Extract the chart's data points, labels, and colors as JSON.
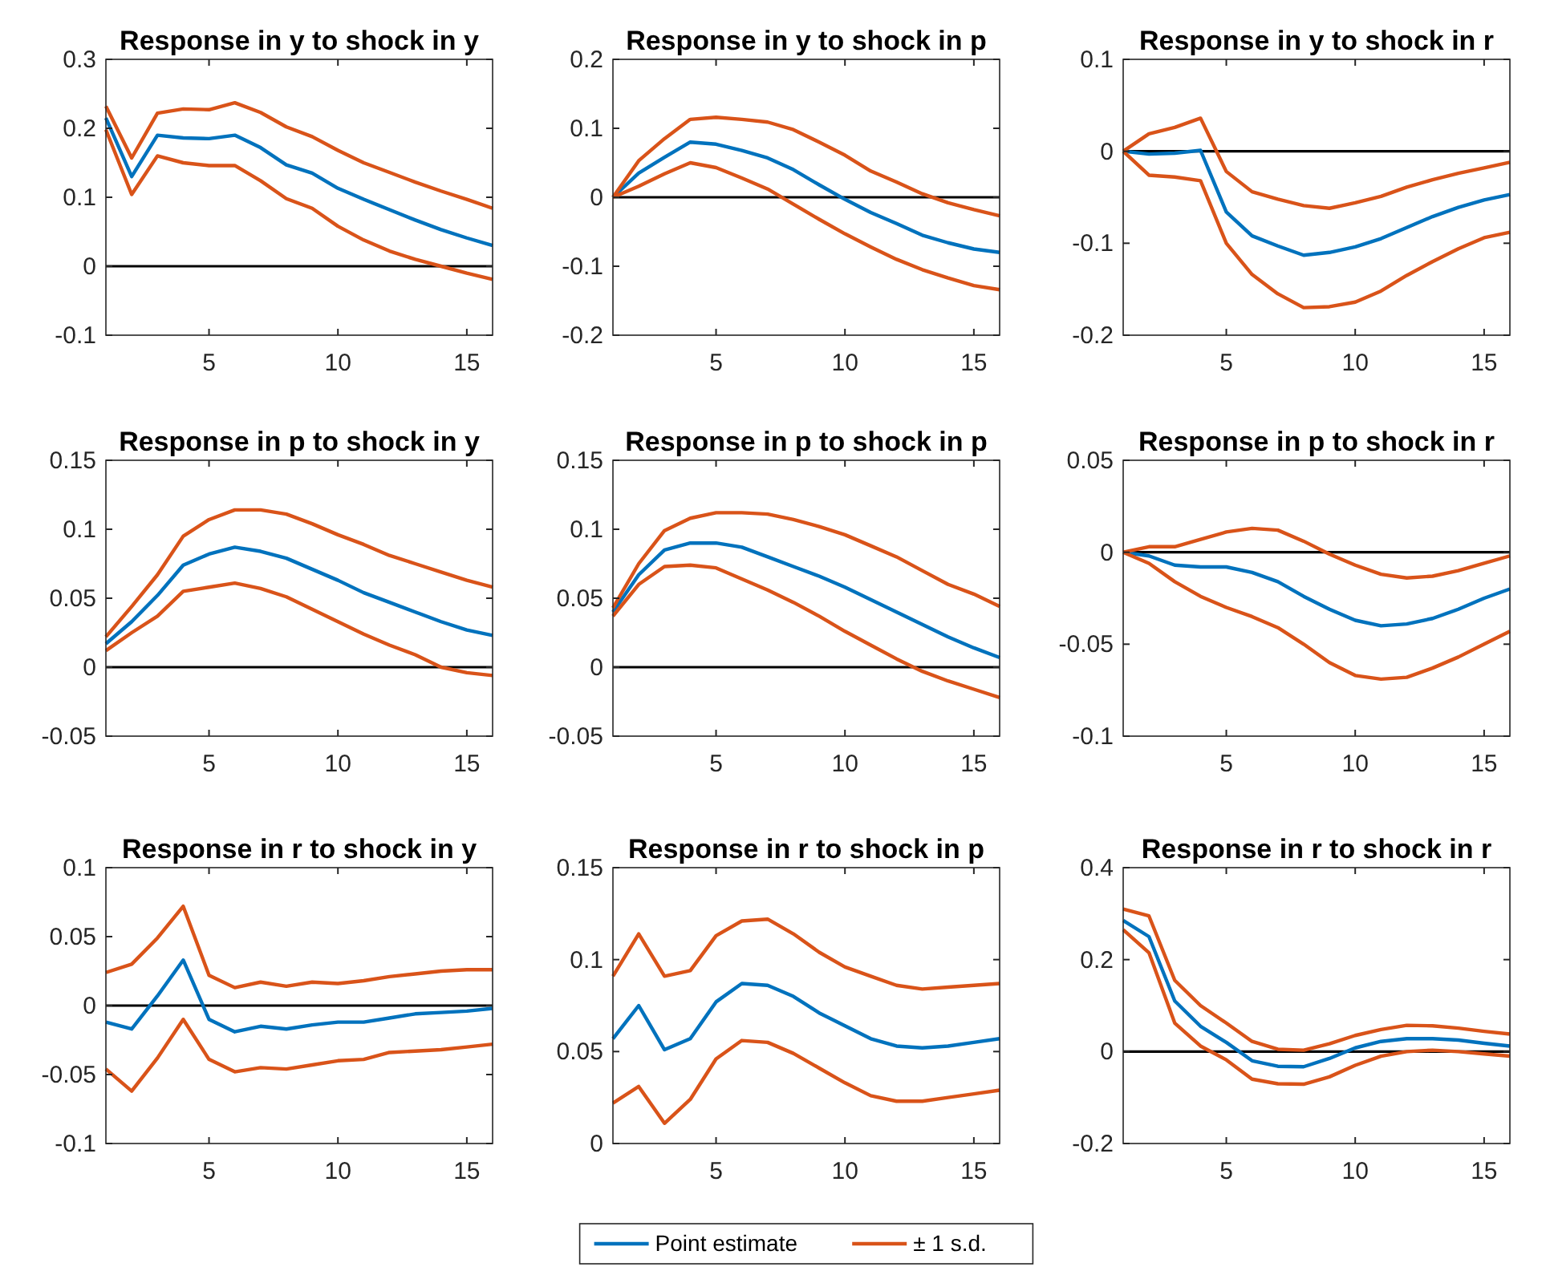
{
  "chart_data": [
    {
      "type": "line",
      "title": "Response in y to shock in y",
      "x": [
        1,
        2,
        3,
        4,
        5,
        6,
        7,
        8,
        9,
        10,
        11,
        12,
        13,
        14,
        15,
        16
      ],
      "xlim": [
        1,
        16
      ],
      "xticks": [
        5,
        10,
        15
      ],
      "ylim": [
        -0.1,
        0.3
      ],
      "yticks": [
        -0.1,
        0,
        0.1,
        0.2,
        0.3
      ],
      "ref_lines": [
        {
          "axis": "y",
          "value": 0,
          "color": "#000000"
        }
      ],
      "series": [
        {
          "color": "#0072bd",
          "values": [
            0.215,
            0.13,
            0.19,
            0.186,
            0.185,
            0.19,
            0.172,
            0.147,
            0.135,
            0.113,
            0.097,
            0.082,
            0.067,
            0.053,
            0.041,
            0.03
          ]
        },
        {
          "color": "#d95319",
          "values": [
            0.232,
            0.157,
            0.222,
            0.228,
            0.227,
            0.237,
            0.223,
            0.202,
            0.188,
            0.168,
            0.15,
            0.136,
            0.122,
            0.109,
            0.097,
            0.084
          ]
        },
        {
          "color": "#d95319",
          "values": [
            0.198,
            0.104,
            0.16,
            0.15,
            0.146,
            0.146,
            0.124,
            0.098,
            0.084,
            0.058,
            0.038,
            0.022,
            0.01,
            0.0,
            -0.01,
            -0.019
          ]
        }
      ]
    },
    {
      "type": "line",
      "title": "Response in y to shock in p",
      "x": [
        1,
        2,
        3,
        4,
        5,
        6,
        7,
        8,
        9,
        10,
        11,
        12,
        13,
        14,
        15,
        16
      ],
      "xlim": [
        1,
        16
      ],
      "xticks": [
        5,
        10,
        15
      ],
      "ylim": [
        -0.2,
        0.2
      ],
      "yticks": [
        -0.2,
        -0.1,
        0,
        0.1,
        0.2
      ],
      "ref_lines": [
        {
          "axis": "y",
          "value": 0,
          "color": "#000000"
        }
      ],
      "series": [
        {
          "color": "#0072bd",
          "values": [
            0,
            0.035,
            0.058,
            0.08,
            0.077,
            0.068,
            0.057,
            0.04,
            0.018,
            -0.003,
            -0.022,
            -0.038,
            -0.055,
            -0.066,
            -0.075,
            -0.08
          ]
        },
        {
          "color": "#d95319",
          "values": [
            0,
            0.053,
            0.085,
            0.113,
            0.116,
            0.113,
            0.109,
            0.098,
            0.08,
            0.061,
            0.038,
            0.022,
            0.005,
            -0.008,
            -0.018,
            -0.027
          ]
        },
        {
          "color": "#d95319",
          "values": [
            0,
            0.016,
            0.034,
            0.05,
            0.043,
            0.028,
            0.012,
            -0.01,
            -0.032,
            -0.053,
            -0.072,
            -0.09,
            -0.105,
            -0.117,
            -0.128,
            -0.134
          ]
        }
      ]
    },
    {
      "type": "line",
      "title": "Response in y to shock in r",
      "x": [
        1,
        2,
        3,
        4,
        5,
        6,
        7,
        8,
        9,
        10,
        11,
        12,
        13,
        14,
        15,
        16
      ],
      "xlim": [
        1,
        16
      ],
      "xticks": [
        5,
        10,
        15
      ],
      "ylim": [
        -0.2,
        0.1
      ],
      "yticks": [
        -0.2,
        -0.1,
        0,
        0.1
      ],
      "ref_lines": [
        {
          "axis": "y",
          "value": 0,
          "color": "#000000"
        }
      ],
      "series": [
        {
          "color": "#0072bd",
          "values": [
            0,
            -0.003,
            -0.002,
            0.001,
            -0.066,
            -0.092,
            -0.103,
            -0.113,
            -0.11,
            -0.104,
            -0.095,
            -0.083,
            -0.071,
            -0.061,
            -0.053,
            -0.047
          ]
        },
        {
          "color": "#d95319",
          "values": [
            0,
            0.019,
            0.026,
            0.036,
            -0.022,
            -0.044,
            -0.052,
            -0.059,
            -0.062,
            -0.056,
            -0.049,
            -0.039,
            -0.031,
            -0.024,
            -0.018,
            -0.012
          ]
        },
        {
          "color": "#d95319",
          "values": [
            0,
            -0.026,
            -0.028,
            -0.032,
            -0.1,
            -0.134,
            -0.155,
            -0.17,
            -0.169,
            -0.164,
            -0.152,
            -0.135,
            -0.12,
            -0.106,
            -0.094,
            -0.088
          ]
        }
      ]
    },
    {
      "type": "line",
      "title": "Response in p to shock in y",
      "x": [
        1,
        2,
        3,
        4,
        5,
        6,
        7,
        8,
        9,
        10,
        11,
        12,
        13,
        14,
        15,
        16
      ],
      "xlim": [
        1,
        16
      ],
      "xticks": [
        5,
        10,
        15
      ],
      "ylim": [
        -0.05,
        0.15
      ],
      "yticks": [
        -0.05,
        0,
        0.05,
        0.1,
        0.15
      ],
      "ref_lines": [
        {
          "axis": "y",
          "value": 0,
          "color": "#000000"
        }
      ],
      "series": [
        {
          "color": "#0072bd",
          "values": [
            0.017,
            0.033,
            0.052,
            0.074,
            0.082,
            0.087,
            0.084,
            0.079,
            0.071,
            0.063,
            0.054,
            0.047,
            0.04,
            0.033,
            0.027,
            0.023
          ]
        },
        {
          "color": "#d95319",
          "values": [
            0.022,
            0.044,
            0.067,
            0.095,
            0.107,
            0.114,
            0.114,
            0.111,
            0.104,
            0.096,
            0.089,
            0.081,
            0.075,
            0.069,
            0.063,
            0.058
          ]
        },
        {
          "color": "#d95319",
          "values": [
            0.012,
            0.025,
            0.037,
            0.055,
            0.058,
            0.061,
            0.057,
            0.051,
            0.042,
            0.033,
            0.024,
            0.016,
            0.009,
            0.0,
            -0.004,
            -0.006
          ]
        }
      ]
    },
    {
      "type": "line",
      "title": "Response in p to shock in p",
      "x": [
        1,
        2,
        3,
        4,
        5,
        6,
        7,
        8,
        9,
        10,
        11,
        12,
        13,
        14,
        15,
        16
      ],
      "xlim": [
        1,
        16
      ],
      "xticks": [
        5,
        10,
        15
      ],
      "ylim": [
        -0.05,
        0.15
      ],
      "yticks": [
        -0.05,
        0,
        0.05,
        0.1,
        0.15
      ],
      "ref_lines": [
        {
          "axis": "y",
          "value": 0,
          "color": "#000000"
        }
      ],
      "series": [
        {
          "color": "#0072bd",
          "values": [
            0.04,
            0.067,
            0.085,
            0.09,
            0.09,
            0.087,
            0.08,
            0.073,
            0.066,
            0.058,
            0.049,
            0.04,
            0.031,
            0.022,
            0.014,
            0.007
          ]
        },
        {
          "color": "#d95319",
          "values": [
            0.043,
            0.075,
            0.099,
            0.108,
            0.112,
            0.112,
            0.111,
            0.107,
            0.102,
            0.096,
            0.088,
            0.08,
            0.07,
            0.06,
            0.053,
            0.044
          ]
        },
        {
          "color": "#d95319",
          "values": [
            0.037,
            0.06,
            0.073,
            0.074,
            0.072,
            0.064,
            0.056,
            0.047,
            0.037,
            0.026,
            0.016,
            0.006,
            -0.003,
            -0.01,
            -0.016,
            -0.022
          ]
        }
      ]
    },
    {
      "type": "line",
      "title": "Response in p to shock in r",
      "x": [
        1,
        2,
        3,
        4,
        5,
        6,
        7,
        8,
        9,
        10,
        11,
        12,
        13,
        14,
        15,
        16
      ],
      "xlim": [
        1,
        16
      ],
      "xticks": [
        5,
        10,
        15
      ],
      "ylim": [
        -0.1,
        0.05
      ],
      "yticks": [
        -0.1,
        -0.05,
        0,
        0.05
      ],
      "ref_lines": [
        {
          "axis": "y",
          "value": 0,
          "color": "#000000"
        }
      ],
      "series": [
        {
          "color": "#0072bd",
          "values": [
            0,
            -0.002,
            -0.007,
            -0.008,
            -0.008,
            -0.011,
            -0.016,
            -0.024,
            -0.031,
            -0.037,
            -0.04,
            -0.039,
            -0.036,
            -0.031,
            -0.025,
            -0.02
          ]
        },
        {
          "color": "#d95319",
          "values": [
            0,
            0.003,
            0.003,
            0.007,
            0.011,
            0.013,
            0.012,
            0.006,
            -0.001,
            -0.007,
            -0.012,
            -0.014,
            -0.013,
            -0.01,
            -0.006,
            -0.002
          ]
        },
        {
          "color": "#d95319",
          "values": [
            0,
            -0.006,
            -0.016,
            -0.024,
            -0.03,
            -0.035,
            -0.041,
            -0.05,
            -0.06,
            -0.067,
            -0.069,
            -0.068,
            -0.063,
            -0.057,
            -0.05,
            -0.043
          ]
        }
      ]
    },
    {
      "type": "line",
      "title": "Response in r to shock in y",
      "x": [
        1,
        2,
        3,
        4,
        5,
        6,
        7,
        8,
        9,
        10,
        11,
        12,
        13,
        14,
        15,
        16
      ],
      "xlim": [
        1,
        16
      ],
      "xticks": [
        5,
        10,
        15
      ],
      "ylim": [
        -0.1,
        0.1
      ],
      "yticks": [
        -0.1,
        -0.05,
        0,
        0.05,
        0.1
      ],
      "ref_lines": [
        {
          "axis": "y",
          "value": 0,
          "color": "#000000"
        }
      ],
      "series": [
        {
          "color": "#0072bd",
          "values": [
            -0.012,
            -0.017,
            0.007,
            0.033,
            -0.01,
            -0.019,
            -0.015,
            -0.017,
            -0.014,
            -0.012,
            -0.012,
            -0.009,
            -0.006,
            -0.005,
            -0.004,
            -0.002
          ]
        },
        {
          "color": "#d95319",
          "values": [
            0.024,
            0.03,
            0.049,
            0.072,
            0.022,
            0.013,
            0.017,
            0.014,
            0.017,
            0.016,
            0.018,
            0.021,
            0.023,
            0.025,
            0.026,
            0.026
          ]
        },
        {
          "color": "#d95319",
          "values": [
            -0.046,
            -0.062,
            -0.038,
            -0.01,
            -0.039,
            -0.048,
            -0.045,
            -0.046,
            -0.043,
            -0.04,
            -0.039,
            -0.034,
            -0.033,
            -0.032,
            -0.03,
            -0.028
          ]
        }
      ]
    },
    {
      "type": "line",
      "title": "Response in r to shock in p",
      "x": [
        1,
        2,
        3,
        4,
        5,
        6,
        7,
        8,
        9,
        10,
        11,
        12,
        13,
        14,
        15,
        16
      ],
      "xlim": [
        1,
        16
      ],
      "xticks": [
        5,
        10,
        15
      ],
      "ylim": [
        0,
        0.15
      ],
      "yticks": [
        0,
        0.05,
        0.1,
        0.15
      ],
      "legend": "bottom",
      "series": [
        {
          "name": "Point estimate",
          "color": "#0072bd",
          "values": [
            0.057,
            0.075,
            0.051,
            0.057,
            0.077,
            0.087,
            0.086,
            0.08,
            0.071,
            0.064,
            0.057,
            0.053,
            0.052,
            0.053,
            0.055,
            0.057
          ]
        },
        {
          "name": "± 1 s.d.",
          "color": "#d95319",
          "values": [
            0.091,
            0.114,
            0.091,
            0.094,
            0.113,
            0.121,
            0.122,
            0.114,
            0.104,
            0.096,
            0.091,
            0.086,
            0.084,
            0.085,
            0.086,
            0.087
          ]
        },
        {
          "color": "#d95319",
          "values": [
            0.022,
            0.031,
            0.011,
            0.024,
            0.046,
            0.056,
            0.055,
            0.049,
            0.041,
            0.033,
            0.026,
            0.023,
            0.023,
            0.025,
            0.027,
            0.029
          ]
        }
      ]
    },
    {
      "type": "line",
      "title": "Response in r to shock in r",
      "x": [
        1,
        2,
        3,
        4,
        5,
        6,
        7,
        8,
        9,
        10,
        11,
        12,
        13,
        14,
        15,
        16
      ],
      "xlim": [
        1,
        16
      ],
      "xticks": [
        5,
        10,
        15
      ],
      "ylim": [
        -0.2,
        0.4
      ],
      "yticks": [
        -0.2,
        0,
        0.2,
        0.4
      ],
      "ref_lines": [
        {
          "axis": "y",
          "value": 0,
          "color": "#000000"
        }
      ],
      "series": [
        {
          "color": "#0072bd",
          "values": [
            0.285,
            0.25,
            0.11,
            0.055,
            0.02,
            -0.02,
            -0.032,
            -0.033,
            -0.015,
            0.008,
            0.022,
            0.028,
            0.028,
            0.025,
            0.018,
            0.012
          ]
        },
        {
          "color": "#d95319",
          "values": [
            0.31,
            0.295,
            0.155,
            0.1,
            0.062,
            0.022,
            0.005,
            0.003,
            0.017,
            0.035,
            0.048,
            0.057,
            0.056,
            0.051,
            0.044,
            0.038
          ]
        },
        {
          "color": "#d95319",
          "values": [
            0.265,
            0.215,
            0.062,
            0.012,
            -0.018,
            -0.06,
            -0.07,
            -0.071,
            -0.055,
            -0.03,
            -0.01,
            0.0,
            0.003,
            0.0,
            -0.005,
            -0.01
          ]
        }
      ]
    }
  ]
}
